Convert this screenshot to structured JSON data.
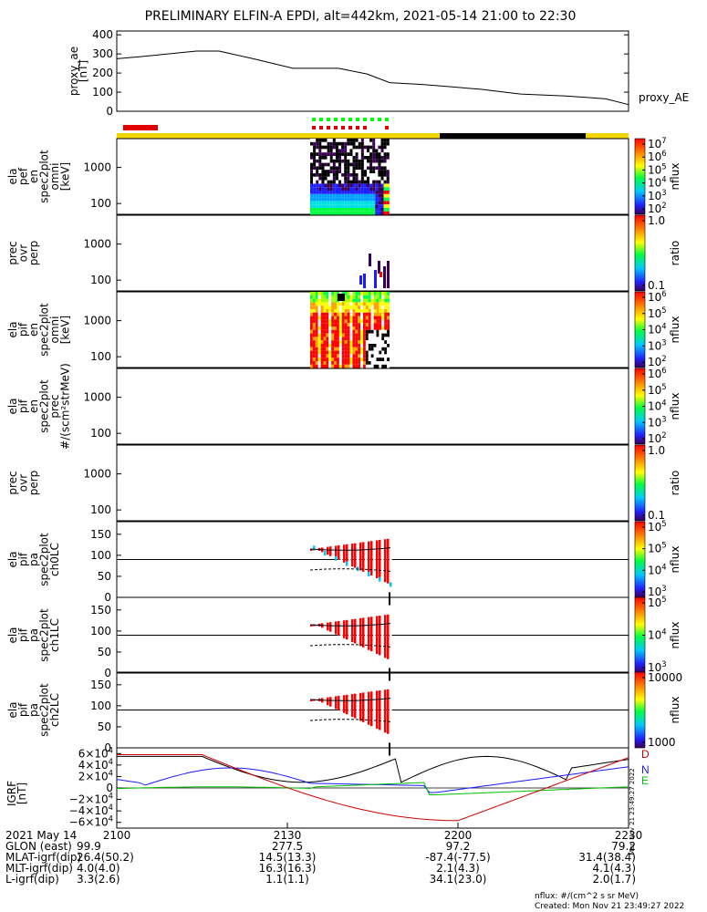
{
  "title": "PRELIMINARY ELFIN-A EPDI, alt=442km, 2021-05-14 21:00 to 22:30",
  "colors": {
    "sunlight": "#f2d600",
    "eclipse": "#000000",
    "science_zone": "#e00000",
    "collection": "#00ff00"
  },
  "chart_data": [
    {
      "type": "line",
      "ylabel": "proxy_ae",
      "yunit": "[nT]",
      "series_label": "proxy_AE",
      "yticks": [
        "400",
        "300",
        "200",
        "100",
        "0"
      ],
      "ylim": [
        0,
        420
      ],
      "x": [
        0,
        4,
        9,
        14,
        18,
        24,
        31,
        36,
        39,
        44,
        48,
        54,
        58,
        64,
        71,
        79,
        86,
        90
      ],
      "values": [
        275,
        285,
        300,
        315,
        315,
        275,
        225,
        225,
        225,
        195,
        150,
        140,
        130,
        115,
        90,
        80,
        65,
        35
      ]
    },
    {
      "type": "heatmap",
      "ylabel": [
        "ela",
        "pef",
        "en",
        "spec2plot",
        "omni",
        "[keV]"
      ],
      "yticks": [
        "1000",
        "100"
      ],
      "colorbar": {
        "label": "nflux",
        "ticks": [
          "10^7",
          "10^6",
          "10^5",
          "10^4",
          "10^3",
          "10^2"
        ]
      }
    },
    {
      "type": "heatmap",
      "ylabel": [
        "prec",
        "ovr",
        "perp"
      ],
      "yticks": [
        "1000",
        "100"
      ],
      "colorbar": {
        "label": "ratio",
        "ticks": [
          "1.0",
          "0.1"
        ]
      }
    },
    {
      "type": "heatmap",
      "ylabel": [
        "ela",
        "pif",
        "en",
        "spec2plot",
        "omni",
        "[keV]"
      ],
      "yticks": [
        "1000",
        "100"
      ],
      "colorbar": {
        "label": "nflux",
        "ticks": [
          "10^6",
          "10^5",
          "10^4",
          "10^3",
          "10^2"
        ]
      }
    },
    {
      "type": "heatmap",
      "ylabel": [
        "ela",
        "pif",
        "en",
        "spec2plot",
        "prec",
        "#/(scm²strMeV)"
      ],
      "yticks": [
        "1000",
        "100"
      ],
      "colorbar": {
        "label": "nflux",
        "ticks": [
          "10^6",
          "10^5",
          "10^4",
          "10^3",
          "10^2"
        ]
      }
    },
    {
      "type": "heatmap",
      "ylabel": [
        "prec",
        "ovr",
        "perp"
      ],
      "yticks": [
        "1000",
        "100"
      ],
      "colorbar": {
        "label": "ratio",
        "ticks": [
          "1.0",
          "0.1"
        ]
      }
    },
    {
      "type": "heatmap",
      "ylabel": [
        "ela",
        "pif",
        "pa",
        "spec2plot",
        "ch0LC"
      ],
      "yticks": [
        "150",
        "100",
        "50",
        "0"
      ],
      "colorbar": {
        "label": "nflux",
        "ticks": [
          "10^5",
          "10^5",
          "10^4",
          "10^3"
        ]
      }
    },
    {
      "type": "line",
      "ylabel": "IGRF",
      "yunit": "[nT]",
      "yticks": [
        "6×10^4",
        "4×10^4",
        "2×10^4",
        "0",
        "−2×10^4",
        "−4×10^4",
        "−6×10^4"
      ],
      "legend": [
        "D",
        "N",
        "E"
      ]
    }
  ],
  "pa_panels": [
    {
      "ylabel": [
        "ela",
        "pif",
        "pa",
        "spec2plot",
        "ch0LC"
      ],
      "yticks": [
        "150",
        "100",
        "50",
        "0"
      ],
      "colorbar": {
        "label": "nflux",
        "ticks": [
          "10^5",
          "10^5",
          "10^4",
          "10^3"
        ]
      }
    },
    {
      "ylabel": [
        "ela",
        "pif",
        "pa",
        "spec2plot",
        "ch1LC"
      ],
      "yticks": [
        "150",
        "100",
        "50",
        "0"
      ],
      "colorbar": {
        "label": "nflux",
        "ticks": [
          "10^5",
          "10^4",
          "10^3"
        ]
      }
    },
    {
      "ylabel": [
        "ela",
        "pif",
        "pa",
        "spec2plot",
        "ch2LC"
      ],
      "yticks": [
        "150",
        "100",
        "50",
        "0"
      ],
      "colorbar": {
        "label": "nflux",
        "ticks": [
          "10000",
          "1000"
        ]
      }
    }
  ],
  "xaxis": {
    "rows": [
      {
        "label": "2021 May 14",
        "values": [
          "2100",
          "2130",
          "2200",
          "2230"
        ]
      },
      {
        "label": "GLON (east)",
        "values": [
          "99.9",
          "277.5",
          "97.2",
          "79.2"
        ]
      },
      {
        "label": "MLAT-igrf(dip)",
        "values": [
          "26.4(50.2)",
          "14.5(13.3)",
          "-87.4(-77.5)",
          "31.4(38.4)"
        ]
      },
      {
        "label": "MLT-igrf(dip)",
        "values": [
          "4.0(4.0)",
          "16.3(16.3)",
          "2.1(4.3)",
          "4.1(4.3)"
        ]
      },
      {
        "label": "L-igrf(dip)",
        "values": [
          "3.3(2.6)",
          "1.1(1.1)",
          "34.1(23.0)",
          "2.0(1.7)"
        ]
      }
    ]
  },
  "footer": {
    "units": "nflux: #/(cm^2 s sr MeV)",
    "created": "Created: Mon Nov 21 23:49:27 2022",
    "created_short": "Mon Nov 21 23:49:27 2022"
  }
}
